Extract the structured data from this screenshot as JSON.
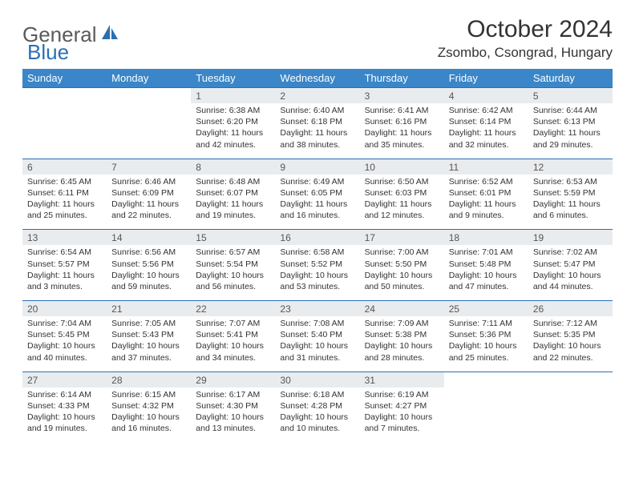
{
  "logo": {
    "text1": "General",
    "text2": "Blue"
  },
  "title": "October 2024",
  "location": "Zsombo, Csongrad, Hungary",
  "colors": {
    "header_bg": "#3a86c8",
    "daynum_bg": "#e9ecef",
    "border": "#2a6fb5",
    "text": "#333333",
    "logo_gray": "#5a5a5a",
    "logo_blue": "#2a6fb5"
  },
  "weekdays": [
    "Sunday",
    "Monday",
    "Tuesday",
    "Wednesday",
    "Thursday",
    "Friday",
    "Saturday"
  ],
  "weeks": [
    {
      "days": [
        null,
        null,
        {
          "n": "1",
          "sunrise": "Sunrise: 6:38 AM",
          "sunset": "Sunset: 6:20 PM",
          "day1": "Daylight: 11 hours",
          "day2": "and 42 minutes."
        },
        {
          "n": "2",
          "sunrise": "Sunrise: 6:40 AM",
          "sunset": "Sunset: 6:18 PM",
          "day1": "Daylight: 11 hours",
          "day2": "and 38 minutes."
        },
        {
          "n": "3",
          "sunrise": "Sunrise: 6:41 AM",
          "sunset": "Sunset: 6:16 PM",
          "day1": "Daylight: 11 hours",
          "day2": "and 35 minutes."
        },
        {
          "n": "4",
          "sunrise": "Sunrise: 6:42 AM",
          "sunset": "Sunset: 6:14 PM",
          "day1": "Daylight: 11 hours",
          "day2": "and 32 minutes."
        },
        {
          "n": "5",
          "sunrise": "Sunrise: 6:44 AM",
          "sunset": "Sunset: 6:13 PM",
          "day1": "Daylight: 11 hours",
          "day2": "and 29 minutes."
        }
      ]
    },
    {
      "days": [
        {
          "n": "6",
          "sunrise": "Sunrise: 6:45 AM",
          "sunset": "Sunset: 6:11 PM",
          "day1": "Daylight: 11 hours",
          "day2": "and 25 minutes."
        },
        {
          "n": "7",
          "sunrise": "Sunrise: 6:46 AM",
          "sunset": "Sunset: 6:09 PM",
          "day1": "Daylight: 11 hours",
          "day2": "and 22 minutes."
        },
        {
          "n": "8",
          "sunrise": "Sunrise: 6:48 AM",
          "sunset": "Sunset: 6:07 PM",
          "day1": "Daylight: 11 hours",
          "day2": "and 19 minutes."
        },
        {
          "n": "9",
          "sunrise": "Sunrise: 6:49 AM",
          "sunset": "Sunset: 6:05 PM",
          "day1": "Daylight: 11 hours",
          "day2": "and 16 minutes."
        },
        {
          "n": "10",
          "sunrise": "Sunrise: 6:50 AM",
          "sunset": "Sunset: 6:03 PM",
          "day1": "Daylight: 11 hours",
          "day2": "and 12 minutes."
        },
        {
          "n": "11",
          "sunrise": "Sunrise: 6:52 AM",
          "sunset": "Sunset: 6:01 PM",
          "day1": "Daylight: 11 hours",
          "day2": "and 9 minutes."
        },
        {
          "n": "12",
          "sunrise": "Sunrise: 6:53 AM",
          "sunset": "Sunset: 5:59 PM",
          "day1": "Daylight: 11 hours",
          "day2": "and 6 minutes."
        }
      ]
    },
    {
      "days": [
        {
          "n": "13",
          "sunrise": "Sunrise: 6:54 AM",
          "sunset": "Sunset: 5:57 PM",
          "day1": "Daylight: 11 hours",
          "day2": "and 3 minutes."
        },
        {
          "n": "14",
          "sunrise": "Sunrise: 6:56 AM",
          "sunset": "Sunset: 5:56 PM",
          "day1": "Daylight: 10 hours",
          "day2": "and 59 minutes."
        },
        {
          "n": "15",
          "sunrise": "Sunrise: 6:57 AM",
          "sunset": "Sunset: 5:54 PM",
          "day1": "Daylight: 10 hours",
          "day2": "and 56 minutes."
        },
        {
          "n": "16",
          "sunrise": "Sunrise: 6:58 AM",
          "sunset": "Sunset: 5:52 PM",
          "day1": "Daylight: 10 hours",
          "day2": "and 53 minutes."
        },
        {
          "n": "17",
          "sunrise": "Sunrise: 7:00 AM",
          "sunset": "Sunset: 5:50 PM",
          "day1": "Daylight: 10 hours",
          "day2": "and 50 minutes."
        },
        {
          "n": "18",
          "sunrise": "Sunrise: 7:01 AM",
          "sunset": "Sunset: 5:48 PM",
          "day1": "Daylight: 10 hours",
          "day2": "and 47 minutes."
        },
        {
          "n": "19",
          "sunrise": "Sunrise: 7:02 AM",
          "sunset": "Sunset: 5:47 PM",
          "day1": "Daylight: 10 hours",
          "day2": "and 44 minutes."
        }
      ]
    },
    {
      "days": [
        {
          "n": "20",
          "sunrise": "Sunrise: 7:04 AM",
          "sunset": "Sunset: 5:45 PM",
          "day1": "Daylight: 10 hours",
          "day2": "and 40 minutes."
        },
        {
          "n": "21",
          "sunrise": "Sunrise: 7:05 AM",
          "sunset": "Sunset: 5:43 PM",
          "day1": "Daylight: 10 hours",
          "day2": "and 37 minutes."
        },
        {
          "n": "22",
          "sunrise": "Sunrise: 7:07 AM",
          "sunset": "Sunset: 5:41 PM",
          "day1": "Daylight: 10 hours",
          "day2": "and 34 minutes."
        },
        {
          "n": "23",
          "sunrise": "Sunrise: 7:08 AM",
          "sunset": "Sunset: 5:40 PM",
          "day1": "Daylight: 10 hours",
          "day2": "and 31 minutes."
        },
        {
          "n": "24",
          "sunrise": "Sunrise: 7:09 AM",
          "sunset": "Sunset: 5:38 PM",
          "day1": "Daylight: 10 hours",
          "day2": "and 28 minutes."
        },
        {
          "n": "25",
          "sunrise": "Sunrise: 7:11 AM",
          "sunset": "Sunset: 5:36 PM",
          "day1": "Daylight: 10 hours",
          "day2": "and 25 minutes."
        },
        {
          "n": "26",
          "sunrise": "Sunrise: 7:12 AM",
          "sunset": "Sunset: 5:35 PM",
          "day1": "Daylight: 10 hours",
          "day2": "and 22 minutes."
        }
      ]
    },
    {
      "days": [
        {
          "n": "27",
          "sunrise": "Sunrise: 6:14 AM",
          "sunset": "Sunset: 4:33 PM",
          "day1": "Daylight: 10 hours",
          "day2": "and 19 minutes."
        },
        {
          "n": "28",
          "sunrise": "Sunrise: 6:15 AM",
          "sunset": "Sunset: 4:32 PM",
          "day1": "Daylight: 10 hours",
          "day2": "and 16 minutes."
        },
        {
          "n": "29",
          "sunrise": "Sunrise: 6:17 AM",
          "sunset": "Sunset: 4:30 PM",
          "day1": "Daylight: 10 hours",
          "day2": "and 13 minutes."
        },
        {
          "n": "30",
          "sunrise": "Sunrise: 6:18 AM",
          "sunset": "Sunset: 4:28 PM",
          "day1": "Daylight: 10 hours",
          "day2": "and 10 minutes."
        },
        {
          "n": "31",
          "sunrise": "Sunrise: 6:19 AM",
          "sunset": "Sunset: 4:27 PM",
          "day1": "Daylight: 10 hours",
          "day2": "and 7 minutes."
        },
        null,
        null
      ]
    }
  ]
}
